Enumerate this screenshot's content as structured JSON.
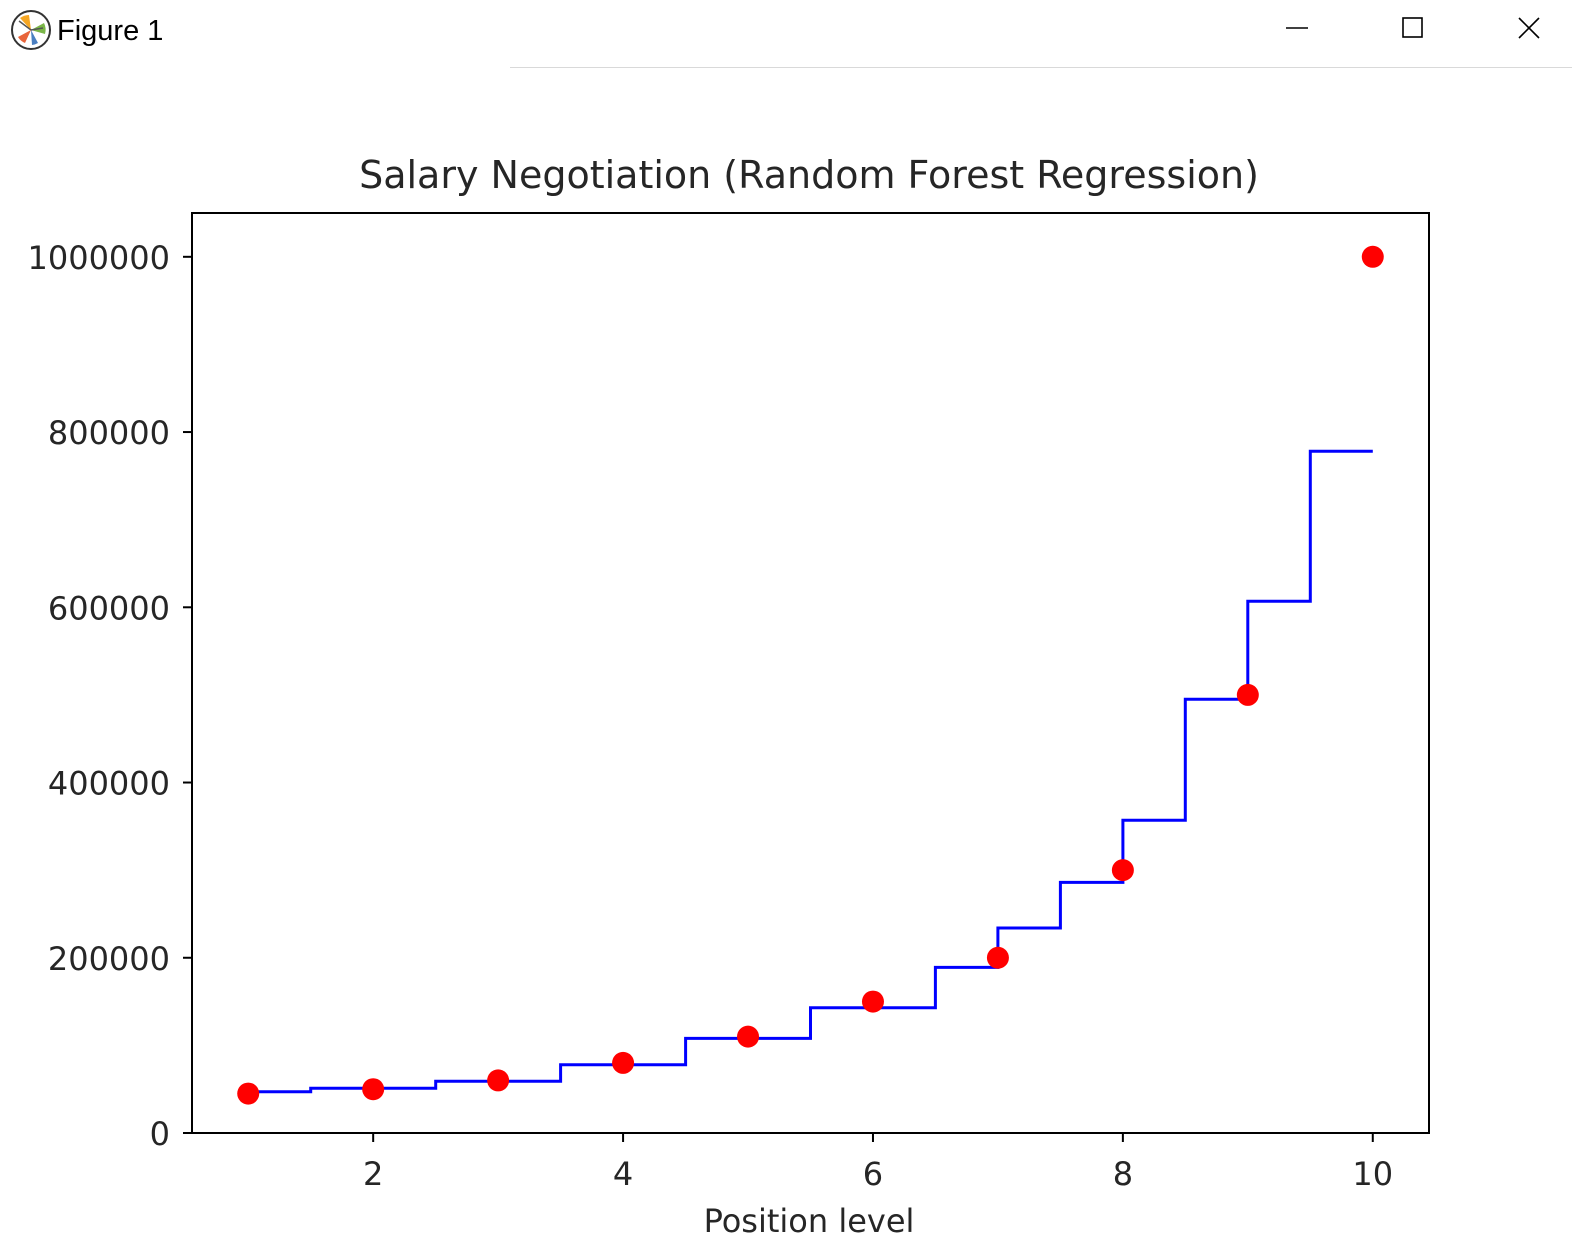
{
  "window": {
    "title": "Figure 1",
    "controls": [
      "minimize",
      "maximize",
      "close"
    ]
  },
  "chart_data": {
    "type": "scatter",
    "title": "Salary Negotiation (Random Forest Regression)",
    "xlabel": "Position level",
    "ylabel": "",
    "xlim": [
      0.55,
      10.45
    ],
    "ylim": [
      0,
      1050000
    ],
    "x_ticks": [
      2,
      4,
      6,
      8,
      10
    ],
    "y_ticks": [
      0,
      200000,
      400000,
      600000,
      800000,
      1000000
    ],
    "grid": false,
    "series": [
      {
        "kind": "scatter",
        "color": "#ff0000",
        "points": [
          [
            1,
            45000
          ],
          [
            2,
            50000
          ],
          [
            3,
            60000
          ],
          [
            4,
            80000
          ],
          [
            5,
            110000
          ],
          [
            6,
            150000
          ],
          [
            7,
            200000
          ],
          [
            8,
            300000
          ],
          [
            9,
            500000
          ],
          [
            10,
            1000000
          ]
        ]
      },
      {
        "kind": "step",
        "color": "#0000ff",
        "x_start": 1,
        "x_end": 10,
        "steps": [
          [
            1,
            47000
          ],
          [
            1.5,
            51000
          ],
          [
            2.5,
            59000
          ],
          [
            3.5,
            78000
          ],
          [
            4.5,
            108000
          ],
          [
            5.5,
            143000
          ],
          [
            6.5,
            189000
          ],
          [
            7,
            234000
          ],
          [
            7.5,
            286000
          ],
          [
            8,
            357000
          ],
          [
            8.5,
            495000
          ],
          [
            9,
            607000
          ],
          [
            9.5,
            778000
          ]
        ]
      }
    ]
  }
}
